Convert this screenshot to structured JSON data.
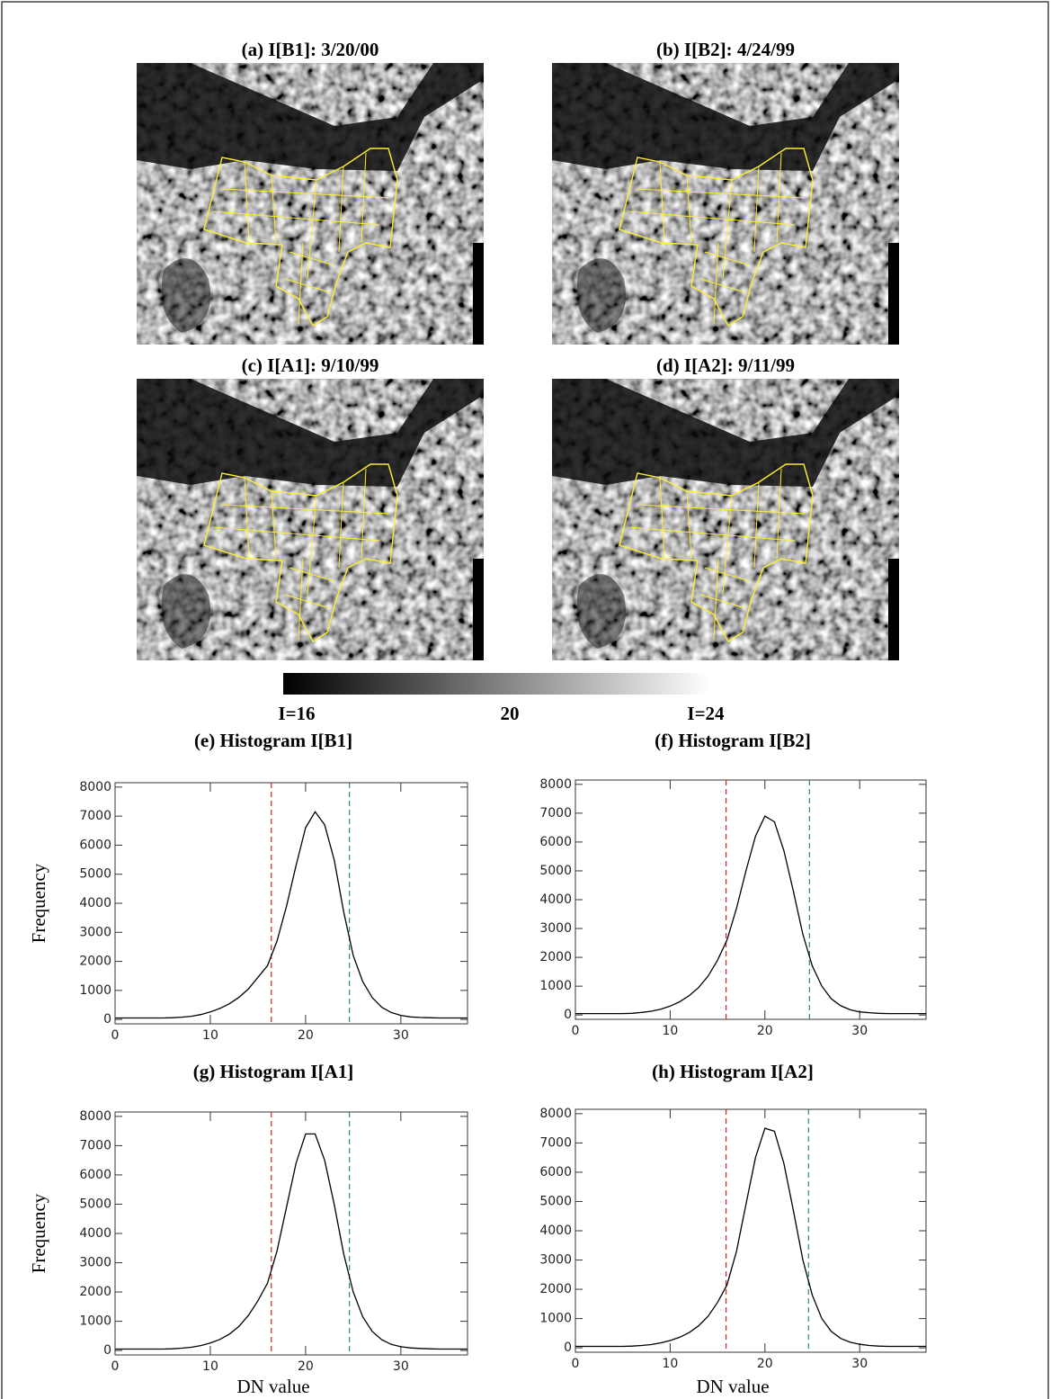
{
  "images": [
    {
      "title": "(a) I[B1]: 3/20/00"
    },
    {
      "title": "(b) I[B2]: 4/24/99"
    },
    {
      "title": "(c) I[A1]: 9/10/99"
    },
    {
      "title": "(d) I[A2]: 9/11/99"
    }
  ],
  "colorbar": {
    "labels": [
      "I=16",
      "20",
      "I=24"
    ]
  },
  "chart_data": [
    {
      "type": "line",
      "title": "(e) Histogram I[B1]",
      "y_label": "Frequency",
      "x": [
        0,
        1,
        2,
        3,
        4,
        5,
        6,
        7,
        8,
        9,
        10,
        11,
        12,
        13,
        14,
        15,
        16,
        17,
        18,
        19,
        20,
        21,
        22,
        23,
        24,
        25,
        26,
        27,
        28,
        29,
        30,
        31,
        32,
        33,
        34,
        35,
        36,
        37
      ],
      "values": [
        50,
        50,
        50,
        50,
        50,
        50,
        60,
        80,
        110,
        170,
        260,
        380,
        540,
        760,
        1050,
        1450,
        1850,
        2700,
        3900,
        5300,
        6600,
        7150,
        6700,
        5500,
        3700,
        2200,
        1300,
        750,
        420,
        240,
        140,
        90,
        70,
        60,
        50,
        50,
        50,
        50
      ],
      "color": "#000000",
      "reference_lines": [
        {
          "value": 16.4,
          "color": "#cc2222"
        },
        {
          "value": 24.6,
          "color": "#2a8a7a"
        }
      ],
      "xlim": [
        0,
        37
      ],
      "ylim": [
        -150,
        8150
      ],
      "xticks": [
        0,
        10,
        20,
        30
      ],
      "yticks": [
        0,
        1000,
        2000,
        3000,
        4000,
        5000,
        6000,
        7000,
        8000
      ]
    },
    {
      "type": "line",
      "title": "(f) Histogram I[B2]",
      "x": [
        0,
        1,
        2,
        3,
        4,
        5,
        6,
        7,
        8,
        9,
        10,
        11,
        12,
        13,
        14,
        15,
        16,
        17,
        18,
        19,
        20,
        21,
        22,
        23,
        24,
        25,
        26,
        27,
        28,
        29,
        30,
        31,
        32,
        33,
        34,
        35,
        36,
        37
      ],
      "values": [
        50,
        50,
        50,
        50,
        50,
        50,
        60,
        90,
        130,
        200,
        310,
        460,
        670,
        950,
        1350,
        1900,
        2600,
        3700,
        5000,
        6200,
        6900,
        6700,
        5700,
        4300,
        2800,
        1700,
        1000,
        560,
        320,
        180,
        110,
        80,
        60,
        50,
        50,
        50,
        50,
        50
      ],
      "color": "#000000",
      "reference_lines": [
        {
          "value": 15.9,
          "color": "#cc2222"
        },
        {
          "value": 24.7,
          "color": "#2a8a7a"
        }
      ],
      "xlim": [
        0,
        37
      ],
      "ylim": [
        -150,
        8150
      ],
      "xticks": [
        0,
        10,
        20,
        30
      ],
      "yticks": [
        0,
        1000,
        2000,
        3000,
        4000,
        5000,
        6000,
        7000,
        8000
      ]
    },
    {
      "type": "line",
      "title": "(g) Histogram I[A1]",
      "y_label": "Frequency",
      "x_label": "DN value",
      "x": [
        0,
        1,
        2,
        3,
        4,
        5,
        6,
        7,
        8,
        9,
        10,
        11,
        12,
        13,
        14,
        15,
        16,
        17,
        18,
        19,
        20,
        21,
        22,
        23,
        24,
        25,
        26,
        27,
        28,
        29,
        30,
        31,
        32,
        33,
        34,
        35,
        36,
        37
      ],
      "values": [
        50,
        50,
        50,
        50,
        50,
        50,
        60,
        80,
        110,
        170,
        260,
        380,
        560,
        820,
        1200,
        1700,
        2300,
        3400,
        4900,
        6400,
        7400,
        7400,
        6500,
        5000,
        3300,
        2000,
        1150,
        650,
        370,
        210,
        130,
        90,
        70,
        60,
        50,
        50,
        50,
        50
      ],
      "color": "#000000",
      "reference_lines": [
        {
          "value": 16.4,
          "color": "#cc2222"
        },
        {
          "value": 24.6,
          "color": "#2a8a7a"
        }
      ],
      "xlim": [
        0,
        37
      ],
      "ylim": [
        -150,
        8150
      ],
      "xticks": [
        0,
        10,
        20,
        30
      ],
      "yticks": [
        0,
        1000,
        2000,
        3000,
        4000,
        5000,
        6000,
        7000,
        8000
      ]
    },
    {
      "type": "line",
      "title": "(h) Histogram I[A2]",
      "x_label": "DN value",
      "x": [
        0,
        1,
        2,
        3,
        4,
        5,
        6,
        7,
        8,
        9,
        10,
        11,
        12,
        13,
        14,
        15,
        16,
        17,
        18,
        19,
        20,
        21,
        22,
        23,
        24,
        25,
        26,
        27,
        28,
        29,
        30,
        31,
        32,
        33,
        34,
        35,
        36,
        37
      ],
      "values": [
        50,
        50,
        50,
        50,
        50,
        50,
        60,
        80,
        110,
        170,
        250,
        360,
        520,
        750,
        1080,
        1550,
        2150,
        3300,
        4900,
        6500,
        7500,
        7400,
        6300,
        4700,
        3000,
        1800,
        1000,
        560,
        320,
        190,
        120,
        80,
        60,
        50,
        50,
        50,
        50,
        50
      ],
      "color": "#000000",
      "reference_lines": [
        {
          "value": 15.9,
          "color": "#cc2222"
        },
        {
          "value": 24.6,
          "color": "#2a8a7a"
        }
      ],
      "xlim": [
        0,
        37
      ],
      "ylim": [
        -150,
        8150
      ],
      "xticks": [
        0,
        10,
        20,
        30
      ],
      "yticks": [
        0,
        1000,
        2000,
        3000,
        4000,
        5000,
        6000,
        7000,
        8000
      ]
    }
  ]
}
